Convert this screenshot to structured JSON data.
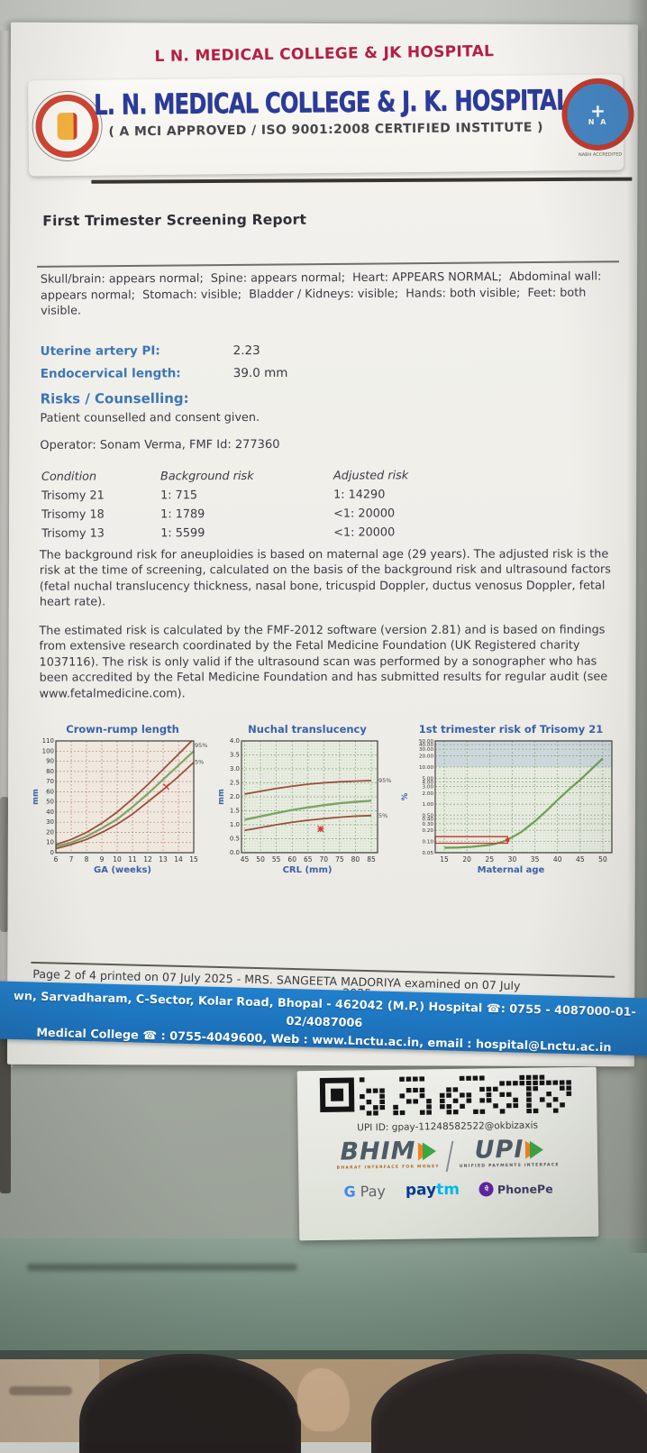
{
  "header": {
    "overline": "L N. MEDICAL COLLEGE & JK HOSPITAL",
    "title": "L. N. MEDICAL COLLEGE & J. K. HOSPITAL",
    "subtitle": "( A MCI APPROVED / ISO 9001:2008 CERTIFIED INSTITUTE )",
    "accreditation": "NABH ACCREDITED"
  },
  "report": {
    "title": "First Trimester Screening Report",
    "findings": "Skull/brain: appears normal;  Spine: appears normal;  Heart: APPEARS NORMAL;  Abdominal wall: appears normal;  Stomach: visible;  Bladder / Kidneys: visible;  Hands: both visible;  Feet: both visible.",
    "params": [
      {
        "label": "Uterine artery PI:",
        "value": "2.23"
      },
      {
        "label": "Endocervical length:",
        "value": "39.0 mm"
      }
    ],
    "risks_heading": "Risks / Counselling:",
    "risks_text": "Patient counselled and consent given.",
    "operator_line": "Operator: Sonam Verma, FMF Id: 277360",
    "risk_table": {
      "headers": [
        "Condition",
        "Background risk",
        "Adjusted risk"
      ],
      "rows": [
        {
          "condition": "Trisomy 21",
          "background": "1: 715",
          "adjusted": "1: 14290"
        },
        {
          "condition": "Trisomy 18",
          "background": "1: 1789",
          "adjusted": "<1: 20000"
        },
        {
          "condition": "Trisomy 13",
          "background": "1: 5599",
          "adjusted": "<1: 20000"
        }
      ]
    },
    "para1": "The background risk for aneuploidies is based on maternal age (29 years). The adjusted risk is the risk at the time of screening, calculated on the basis of the background risk and ultrasound factors (fetal nuchal translucency thickness, nasal bone, tricuspid Doppler, ductus venosus Doppler, fetal heart rate).",
    "para2": "The estimated risk is calculated by the FMF-2012 software (version 2.81) and is based on findings from extensive research coordinated by the Fetal Medicine Foundation (UK Registered charity 1037116). The risk is only valid if the ultrasound scan was performed by a sonographer who has been accredited by the Fetal Medicine Foundation and has submitted results for regular audit (see www.fetalmedicine.com)."
  },
  "chart_data": [
    {
      "type": "line",
      "title": "Crown-rump length",
      "xlabel": "GA (weeks)",
      "ylabel": "mm",
      "xlim": [
        6,
        15
      ],
      "ylim": [
        0,
        110
      ],
      "yscale": "linear",
      "xticks": [
        6,
        7,
        8,
        9,
        10,
        11,
        12,
        13,
        14,
        15
      ],
      "yticks": [
        0,
        10,
        20,
        30,
        40,
        50,
        60,
        70,
        80,
        90,
        100,
        110
      ],
      "grid": "dashed-red",
      "ml": 27,
      "mr": 22,
      "yfs": 7,
      "series": [
        {
          "name": "95th centile",
          "color": "#9c4f3c",
          "width": 1.8,
          "x": [
            6,
            7,
            8,
            9,
            10,
            11,
            12,
            13,
            14,
            15
          ],
          "values": [
            8,
            13,
            20,
            29,
            40,
            53,
            67,
            82,
            97,
            112
          ]
        },
        {
          "name": "median",
          "color": "#7da465",
          "width": 2.2,
          "x": [
            6,
            7,
            8,
            9,
            10,
            11,
            12,
            13,
            14,
            15
          ],
          "values": [
            6,
            10,
            16,
            24,
            33,
            45,
            58,
            72,
            86,
            100
          ]
        },
        {
          "name": "5th centile",
          "color": "#9c4f3c",
          "width": 1.8,
          "x": [
            6,
            7,
            8,
            9,
            10,
            11,
            12,
            13,
            14,
            15
          ],
          "values": [
            4,
            8,
            13,
            20,
            28,
            38,
            50,
            62,
            75,
            89
          ]
        }
      ],
      "centile_labels": [
        "95%",
        "5%"
      ],
      "point": {
        "x": 13.2,
        "y": 65,
        "style": "x"
      }
    },
    {
      "type": "line",
      "title": "Nuchal translucency",
      "xlabel": "CRL (mm)",
      "ylabel": "mm",
      "xlim": [
        44,
        87
      ],
      "ylim": [
        0,
        4
      ],
      "yscale": "linear",
      "xticks": [
        45,
        50,
        55,
        60,
        65,
        70,
        75,
        80,
        85
      ],
      "yticks": [
        0,
        0.5,
        1,
        1.5,
        2,
        2.5,
        3,
        3.5,
        4
      ],
      "ytick_labels": [
        "0.0",
        "0.5",
        "1.0",
        "1.5",
        "2.0",
        "2.5",
        "3.0",
        "3.5",
        "4.0"
      ],
      "grid": "fine-green",
      "ml": 27,
      "mr": 22,
      "yfs": 7,
      "series": [
        {
          "name": "95th centile",
          "color": "#9c4f3c",
          "width": 1.8,
          "x": [
            45,
            50,
            55,
            60,
            65,
            70,
            75,
            80,
            85
          ],
          "values": [
            2.1,
            2.2,
            2.3,
            2.38,
            2.45,
            2.5,
            2.54,
            2.56,
            2.58
          ]
        },
        {
          "name": "median",
          "color": "#7da465",
          "width": 2.4,
          "x": [
            45,
            50,
            55,
            60,
            65,
            70,
            75,
            80,
            85
          ],
          "values": [
            1.18,
            1.3,
            1.42,
            1.53,
            1.62,
            1.7,
            1.77,
            1.82,
            1.86
          ]
        },
        {
          "name": "5th centile",
          "color": "#9c4f3c",
          "width": 1.8,
          "x": [
            45,
            50,
            55,
            60,
            65,
            70,
            75,
            80,
            85
          ],
          "values": [
            0.8,
            0.9,
            1.0,
            1.09,
            1.16,
            1.22,
            1.27,
            1.31,
            1.33
          ]
        }
      ],
      "centile_labels": [
        "95%",
        "5%"
      ],
      "point": {
        "x": 69,
        "y": 0.85,
        "style": "star"
      }
    },
    {
      "type": "line",
      "title": "1st trimester risk of Trisomy 21",
      "xlabel": "Maternal age",
      "ylabel": "%",
      "xlim": [
        13,
        52
      ],
      "ylim": [
        0.05,
        50
      ],
      "yscale": "log",
      "xticks": [
        15,
        20,
        25,
        30,
        35,
        40,
        45,
        50
      ],
      "yticks": [
        50,
        40,
        30,
        20,
        10,
        5,
        4,
        3,
        2,
        1,
        0.5,
        0.4,
        0.3,
        0.2,
        0.1,
        0.05
      ],
      "ytick_labels": [
        "50.00",
        "40.00",
        "30.00",
        "20.00",
        "10.00",
        "5.00",
        "4.00",
        "3.00",
        "2.00",
        "1.00",
        "0.50",
        "0.40",
        "0.30",
        "0.20",
        "0.10",
        "0.05"
      ],
      "grid": "fine-green",
      "band": [
        10,
        50
      ],
      "ml": 38,
      "mr": 10,
      "yfs": 5.6,
      "series": [
        {
          "name": "risk curve",
          "color": "#6f9e55",
          "width": 2.2,
          "x": [
            15,
            18,
            21,
            24,
            26,
            28,
            30,
            32,
            35,
            38,
            40,
            43,
            45,
            48,
            50
          ],
          "values": [
            0.068,
            0.069,
            0.072,
            0.078,
            0.085,
            0.1,
            0.13,
            0.18,
            0.35,
            0.75,
            1.3,
            2.8,
            4.5,
            10,
            17
          ]
        }
      ],
      "risk_box": {
        "x": 29,
        "y1": 0.09,
        "y2": 0.135
      },
      "point": {
        "x": 29,
        "y": 0.11,
        "style": "square"
      }
    }
  ],
  "footer": {
    "page_line": "Page 2 of 4 printed on 07 July 2025 -  MRS. SANGEETA MADORIYA examined on 07 July",
    "page_line_wrap": "2025",
    "address_line1": "wn, Sarvadharam, C-Sector, Kolar Road, Bhopal - 462042 (M.P.) Hospital ☎: 0755 - 4087000-01-02/4087006",
    "address_line2": "Medical College ☎ : 0755-4049600, Web : www.Lnctu.ac.in, email : hospital@Lnctu.ac.in"
  },
  "payment": {
    "upi_id": "UPI ID: gpay-11248582522@okbizaxis",
    "bhim": "BHIM",
    "bhim_tagline": "BHARAT INTERFACE FOR MONEY",
    "upi": "UPI",
    "upi_tagline": "UNIFIED PAYMENTS INTERFACE",
    "gpay_g": "G",
    "gpay_pay": "Pay",
    "paytm_pay": "pay",
    "paytm_tm": "tm",
    "phonepe_icon": "पे",
    "phonepe": "PhonePe"
  },
  "colors": {
    "paper": "#f1f0ec",
    "header_red": "#b51e44",
    "brand_blue": "#2c3b98",
    "label_blue": "#3e76b4",
    "bar_blue": "#1c72bc",
    "chart_green": "#7da465",
    "chart_maroon": "#9c4f3c",
    "marker_red": "#cf3a30"
  }
}
